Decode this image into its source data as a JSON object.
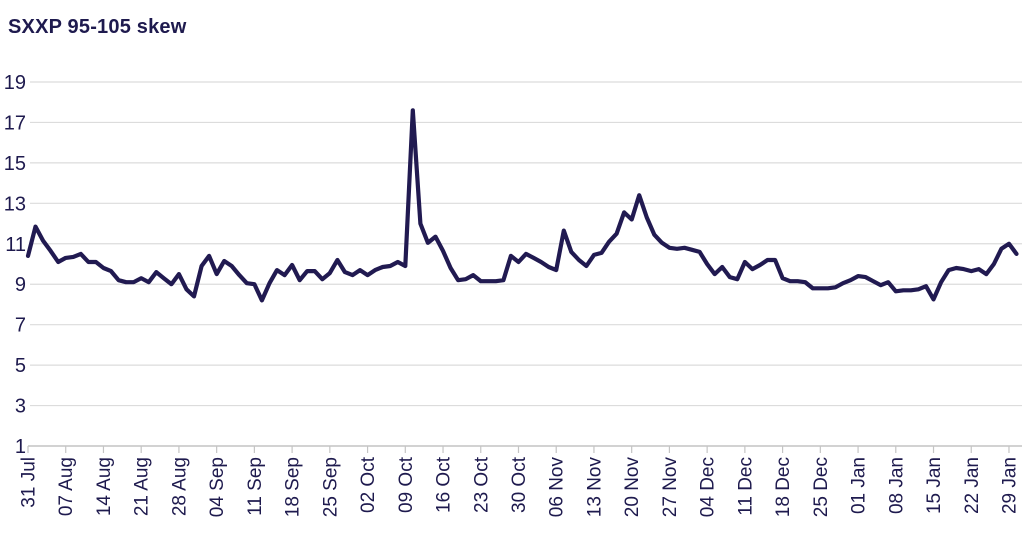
{
  "title": "SXXP 95-105 skew",
  "colors": {
    "line": "#211a51",
    "text": "#1e1a4e",
    "grid": "#dcdcdc",
    "axis": "#c4c4c4",
    "background": "#ffffff"
  },
  "chart_data": {
    "type": "line",
    "title": "SXXP 95-105 skew",
    "frequency": "daily (weekdays)",
    "x_tick_labels": [
      "31 Jul",
      "07 Aug",
      "14 Aug",
      "21 Aug",
      "28 Aug",
      "04 Sep",
      "11 Sep",
      "18 Sep",
      "25 Sep",
      "02 Oct",
      "09 Oct",
      "16 Oct",
      "23 Oct",
      "30 Oct",
      "06 Nov",
      "13 Nov",
      "20 Nov",
      "27 Nov",
      "04 Dec",
      "11 Dec",
      "18 Dec",
      "25 Dec",
      "01 Jan",
      "08 Jan",
      "15 Jan",
      "22 Jan",
      "29 Jan"
    ],
    "x_tick_every": 5,
    "y_ticks": [
      1,
      3,
      5,
      7,
      9,
      11,
      13,
      15,
      17,
      19
    ],
    "ylim": [
      1,
      19
    ],
    "grid": true,
    "legend": "none",
    "series": [
      {
        "name": "SXXP 95-105 skew",
        "start": "31 Jul",
        "end": "30 Jan",
        "values": [
          10.4,
          11.85,
          11.15,
          10.65,
          10.1,
          10.3,
          10.35,
          10.5,
          10.1,
          10.1,
          9.8,
          9.65,
          9.2,
          9.1,
          9.1,
          9.3,
          9.1,
          9.6,
          9.3,
          9.0,
          9.5,
          8.75,
          8.4,
          9.9,
          10.4,
          9.5,
          10.15,
          9.9,
          9.45,
          9.05,
          9.0,
          8.2,
          9.05,
          9.7,
          9.45,
          9.95,
          9.2,
          9.65,
          9.65,
          9.25,
          9.55,
          10.2,
          9.6,
          9.45,
          9.7,
          9.45,
          9.7,
          9.85,
          9.9,
          10.1,
          9.9,
          17.6,
          12.0,
          11.05,
          11.35,
          10.65,
          9.8,
          9.2,
          9.25,
          9.45,
          9.15,
          9.15,
          9.15,
          9.2,
          10.4,
          10.1,
          10.5,
          10.3,
          10.1,
          9.85,
          9.7,
          11.65,
          10.6,
          10.2,
          9.9,
          10.45,
          10.55,
          11.1,
          11.5,
          12.55,
          12.2,
          13.4,
          12.3,
          11.45,
          11.05,
          10.8,
          10.75,
          10.8,
          10.7,
          10.6,
          10.0,
          9.5,
          9.85,
          9.35,
          9.25,
          10.1,
          9.75,
          9.95,
          10.2,
          10.2,
          9.3,
          9.15,
          9.15,
          9.1,
          8.8,
          8.8,
          8.8,
          8.85,
          9.05,
          9.2,
          9.4,
          9.35,
          9.15,
          8.95,
          9.1,
          8.65,
          8.7,
          8.7,
          8.75,
          8.9,
          8.25,
          9.1,
          9.7,
          9.8,
          9.75,
          9.65,
          9.75,
          9.5,
          10.0,
          10.75,
          11.0,
          10.5
        ]
      }
    ]
  }
}
